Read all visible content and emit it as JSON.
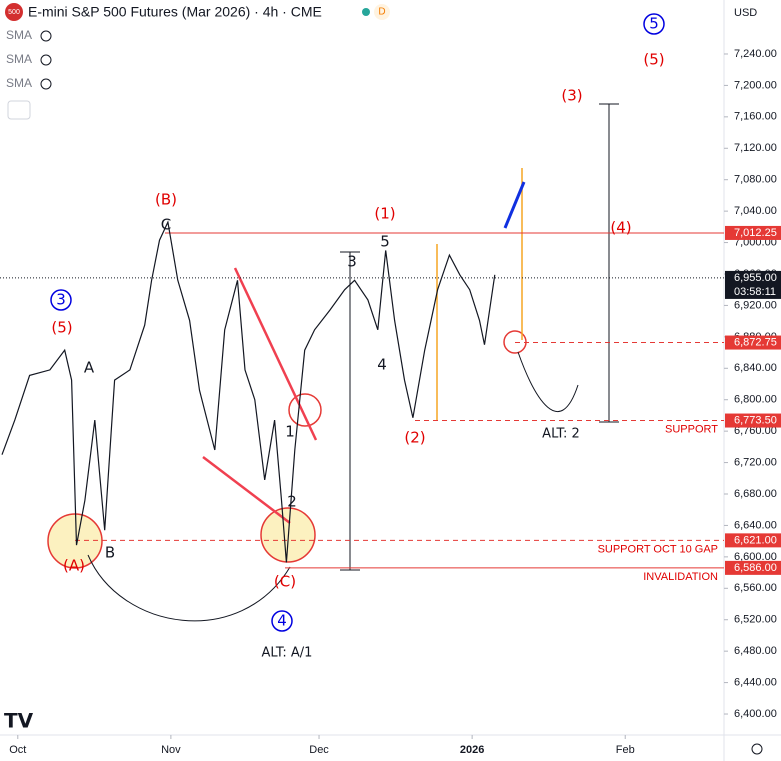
{
  "chart_data": {
    "type": "line",
    "title": "E-mini S&P 500 Futures (Mar 2026) · 4h · CME",
    "symbol_badge": "500",
    "data_badge": "D",
    "indicators": [
      "SMA",
      "SMA",
      "SMA"
    ],
    "currency": "USD",
    "x": [
      -3.2,
      -0.6,
      2.4,
      6.5,
      9.5,
      10.9,
      11.9,
      13.6,
      15.6,
      17.6,
      19.6,
      22.7,
      25.7,
      27.1,
      28.7,
      30.4,
      32.4,
      34.8,
      36.8,
      39.9,
      41.9,
      44.5,
      46,
      48,
      50,
      52,
      53.4,
      54.4,
      56.1,
      58.1,
      60.1,
      63.2,
      66.2,
      68.2,
      70.9,
      72.9,
      74.5,
      76.3,
      78.3,
      80,
      82.4,
      85,
      87.4,
      89.5,
      91.5,
      93.5,
      94.5,
      96.6
    ],
    "series": [
      {
        "color": "#131722",
        "values": [
          6730,
          6774,
          6831,
          6838,
          6863,
          6825,
          6615,
          6672,
          6774,
          6634,
          6825,
          6838,
          6895,
          6952,
          7003,
          7026,
          6952,
          6901,
          6812,
          6736,
          6889,
          6952,
          6838,
          6800,
          6698,
          6774,
          6672,
          6593,
          6736,
          6863,
          6889,
          6914,
          6940,
          6952,
          6927,
          6889,
          6990,
          6901,
          6825,
          6777,
          6863,
          6940,
          6984,
          6959,
          6940,
          6901,
          6870,
          6959
        ]
      }
    ],
    "xlim": [
      -3.6,
      143
    ],
    "ylim": [
      6373.3,
      7308.7
    ],
    "xticks": [
      {
        "value": 0,
        "label": "Oct"
      },
      {
        "value": 31,
        "label": "Nov"
      },
      {
        "value": 61,
        "label": "Dec"
      },
      {
        "value": 92,
        "label": "2026"
      },
      {
        "value": 123,
        "label": "Feb"
      }
    ],
    "yticks": [
      {
        "value": 6400,
        "label": "6,400.00"
      },
      {
        "value": 6440,
        "label": "6,440.00"
      },
      {
        "value": 6480,
        "label": "6,480.00"
      },
      {
        "value": 6520,
        "label": "6,520.00"
      },
      {
        "value": 6560,
        "label": "6,560.00"
      },
      {
        "value": 6600,
        "label": "6,600.00"
      },
      {
        "value": 6640,
        "label": "6,640.00"
      },
      {
        "value": 6680,
        "label": "6,680.00"
      },
      {
        "value": 6720,
        "label": "6,720.00"
      },
      {
        "value": 6760,
        "label": "6,760.00"
      },
      {
        "value": 6800,
        "label": "6,800.00"
      },
      {
        "value": 6840,
        "label": "6,840.00"
      },
      {
        "value": 6880,
        "label": "6,880.00"
      },
      {
        "value": 6920,
        "label": "6,920.00"
      },
      {
        "value": 6960,
        "label": "6,960.00"
      },
      {
        "value": 7000,
        "label": "7,000.00"
      },
      {
        "value": 7040,
        "label": "7,040.00"
      },
      {
        "value": 7080,
        "label": "7,080.00"
      },
      {
        "value": 7120,
        "label": "7,120.00"
      },
      {
        "value": 7160,
        "label": "7,160.00"
      },
      {
        "value": 7200,
        "label": "7,200.00"
      },
      {
        "value": 7240,
        "label": "7,240.00"
      }
    ],
    "levels": [
      {
        "value": 7012.25,
        "label": "7,012.25",
        "color": "#e53935",
        "style": "solid"
      },
      {
        "value": 6955,
        "label": "6,955.00",
        "color": "#131722",
        "style": "dotted",
        "countdown": "03:58:11"
      },
      {
        "value": 6872.75,
        "label": "6,872.75",
        "color": "#e53935",
        "style": "dashed"
      },
      {
        "value": 6773.5,
        "label": "6,773.50",
        "color": "#e53935",
        "style": "dashed",
        "text": "SUPPORT"
      },
      {
        "value": 6621,
        "label": "6,621.00",
        "color": "#e53935",
        "style": "dashed",
        "text": "SUPPORT OCT 10 GAP"
      },
      {
        "value": 6586,
        "label": "6,586.00",
        "color": "#e53935",
        "style": "solid",
        "text": "INVALIDATION"
      }
    ],
    "annotations": [
      {
        "text": "(B)",
        "color": "#e00000"
      },
      {
        "text": "C",
        "color": "#131722"
      },
      {
        "text": "(1)",
        "color": "#e00000"
      },
      {
        "text": "5",
        "color": "#131722"
      },
      {
        "text": "3",
        "color": "#131722"
      },
      {
        "text": "4",
        "color": "#131722"
      },
      {
        "text": "(2)",
        "color": "#e00000"
      },
      {
        "text": "1",
        "color": "#131722"
      },
      {
        "text": "2",
        "color": "#131722"
      },
      {
        "text": "(C)",
        "color": "#e00000"
      },
      {
        "text": "4",
        "color": "#0000e0",
        "circled": true
      },
      {
        "text": "ALT: A/1",
        "color": "#131722"
      },
      {
        "text": "(A)",
        "color": "#e00000"
      },
      {
        "text": "B",
        "color": "#131722"
      },
      {
        "text": "A",
        "color": "#131722"
      },
      {
        "text": "(5)",
        "color": "#e00000"
      },
      {
        "text": "3",
        "color": "#0000e0",
        "circled": true
      },
      {
        "text": "(3)",
        "color": "#e00000"
      },
      {
        "text": "(4)",
        "color": "#e00000"
      },
      {
        "text": "5",
        "color": "#0000e0",
        "circled": true
      },
      {
        "text": "(5)",
        "color": "#e00000"
      },
      {
        "text": "ALT: 2",
        "color": "#131722"
      }
    ]
  }
}
